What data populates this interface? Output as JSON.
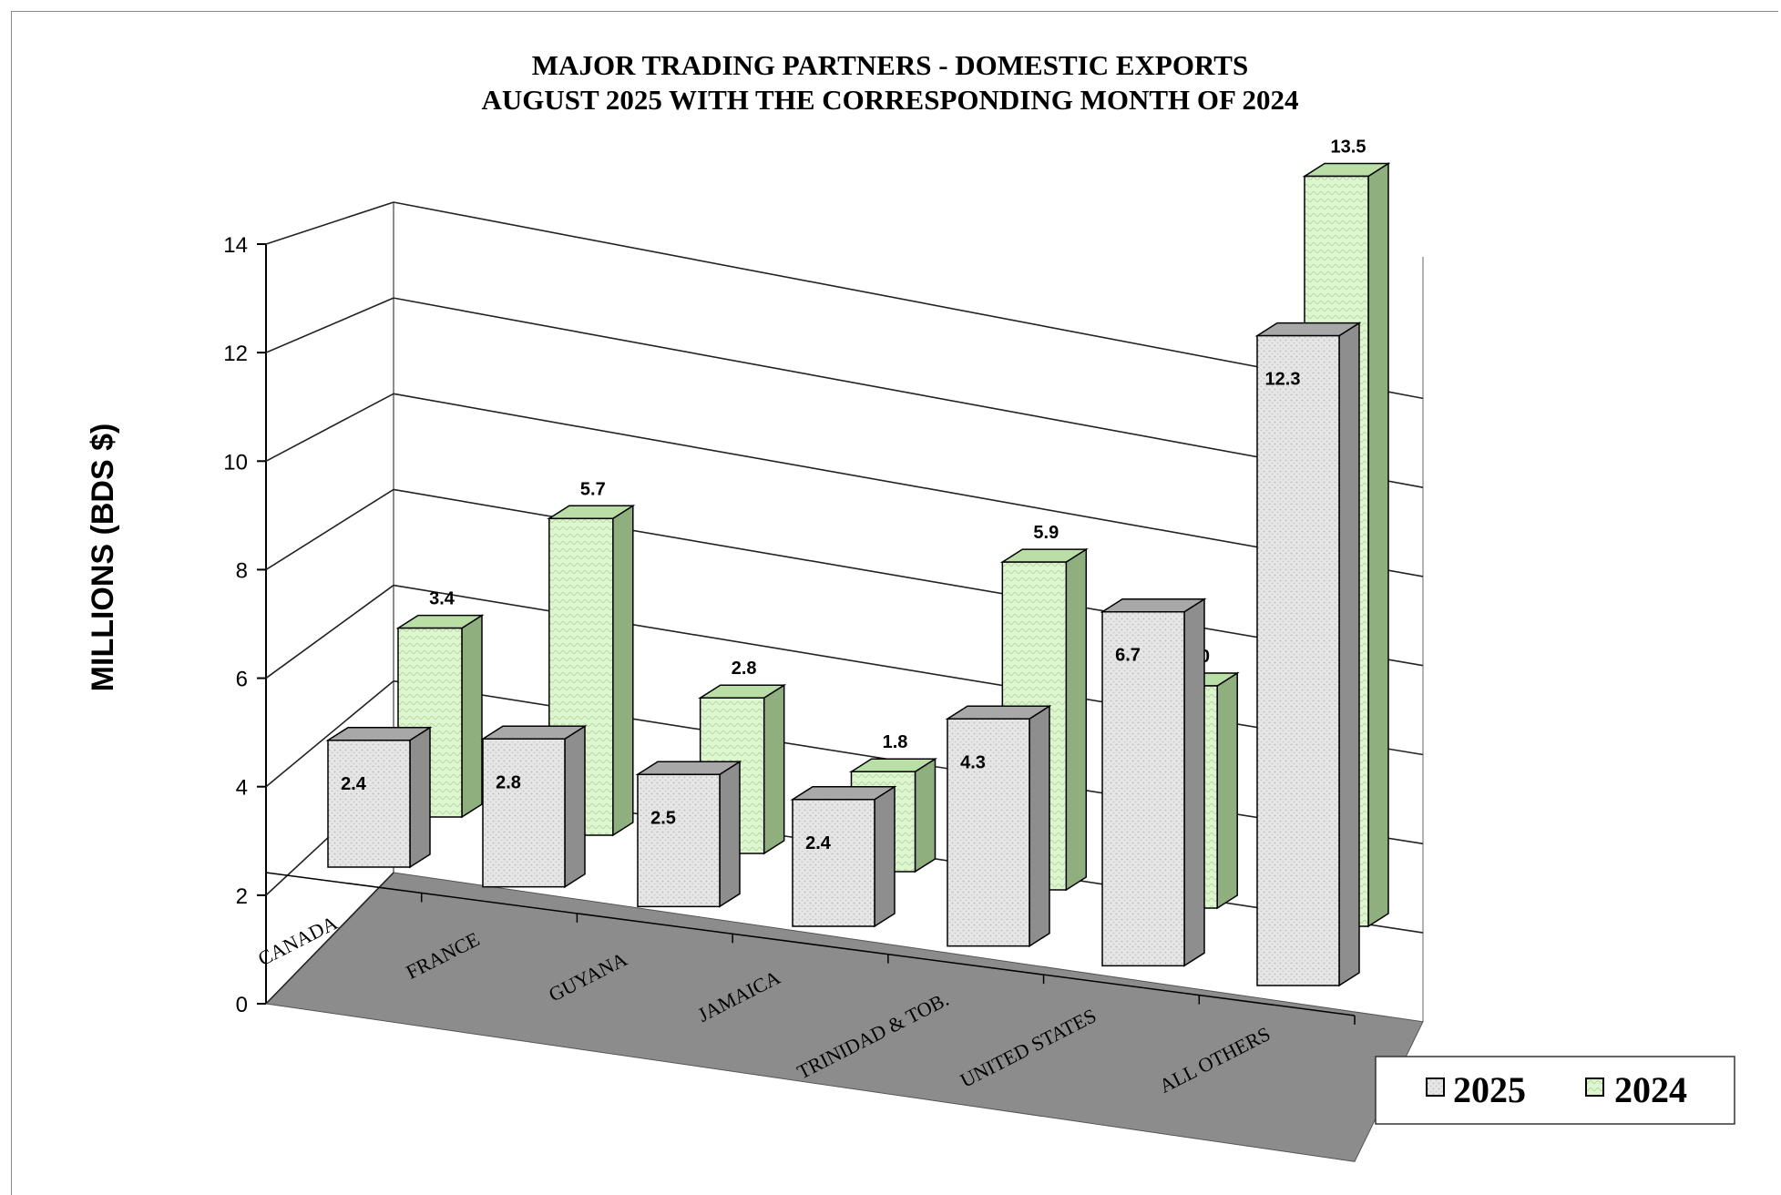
{
  "chart_data": {
    "type": "bar",
    "title": "MAJOR TRADING PARTNERS  - DOMESTIC EXPORTS",
    "subtitle": "AUGUST 2025 WITH THE CORRESPONDING MONTH OF 2024",
    "ylabel": "MILLIONS (BDS $)",
    "xlabel": "",
    "ylim": [
      0,
      14
    ],
    "yticks": [
      0,
      2,
      4,
      6,
      8,
      10,
      12,
      14
    ],
    "categories": [
      "CANADA",
      "FRANCE",
      "GUYANA",
      "JAMAICA",
      "TRINIDAD & TOB.",
      "UNITED STATES",
      "ALL OTHERS"
    ],
    "series": [
      {
        "name": "2025",
        "values": [
          2.4,
          2.8,
          2.5,
          2.4,
          4.3,
          6.7,
          12.3
        ],
        "labels": [
          "2.4",
          "2.8",
          "2.5",
          "2.4",
          "4.3",
          "6.7",
          "12.3"
        ],
        "color": "#e4e4e4"
      },
      {
        "name": "2024",
        "values": [
          3.4,
          5.7,
          2.8,
          1.8,
          5.9,
          4.0,
          13.5
        ],
        "labels": [
          "3.4",
          "5.7",
          "2.8",
          "1.8",
          "5.9",
          "4.0",
          "13.5"
        ],
        "color": "#dcf5cc"
      }
    ],
    "grid": true,
    "legend_position": "bottom-right",
    "style": "3d-clustered-column"
  }
}
